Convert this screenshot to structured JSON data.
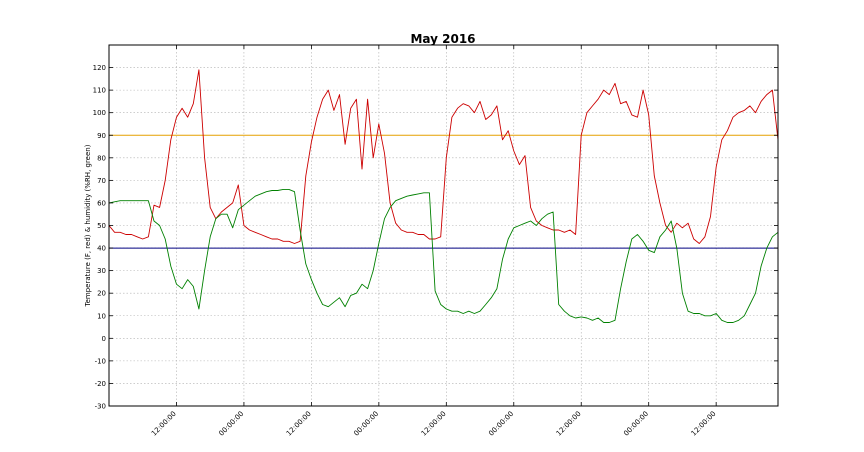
{
  "chart_data": {
    "type": "line",
    "title": "May 2016",
    "xlabel": "",
    "ylabel": "Temperature (F, red) & humidity (%RH, green)",
    "ylim": [
      -30,
      130
    ],
    "xlim": [
      0,
      119
    ],
    "yticks": [
      -30,
      -20,
      -10,
      0,
      10,
      20,
      30,
      40,
      50,
      60,
      70,
      80,
      90,
      100,
      110,
      120
    ],
    "xticks": [
      {
        "pos": 12,
        "label": "12:00:00"
      },
      {
        "pos": 24,
        "label": "00:00:00"
      },
      {
        "pos": 36,
        "label": "12:00:00"
      },
      {
        "pos": 48,
        "label": "00:00:00"
      },
      {
        "pos": 60,
        "label": "12:00:00"
      },
      {
        "pos": 72,
        "label": "00:00:00"
      },
      {
        "pos": 84,
        "label": "12:00:00"
      },
      {
        "pos": 96,
        "label": "00:00:00"
      },
      {
        "pos": 108,
        "label": "12:00:00"
      }
    ],
    "grid": true,
    "colors": {
      "temperature": "#cc0000",
      "humidity": "#008000",
      "upper_ref": "#e6a000",
      "lower_ref": "#000080"
    },
    "reference_lines": [
      {
        "y": 90,
        "color": "#e6a000"
      },
      {
        "y": 40,
        "color": "#000080"
      }
    ],
    "series": [
      {
        "color": "#cc0000",
        "x": [
          0,
          1,
          2,
          3,
          4,
          5,
          6,
          7,
          8,
          9,
          10,
          11,
          12,
          13,
          14,
          15,
          16,
          17,
          18,
          19,
          20,
          21,
          22,
          23,
          24,
          25,
          26,
          27,
          28,
          29,
          30,
          31,
          32,
          33,
          34,
          35,
          36,
          37,
          38,
          39,
          40,
          41,
          42,
          43,
          44,
          45,
          46,
          47,
          48,
          49,
          50,
          51,
          52,
          53,
          54,
          55,
          56,
          57,
          58,
          59,
          60,
          61,
          62,
          63,
          64,
          65,
          66,
          67,
          68,
          69,
          70,
          71,
          72,
          73,
          74,
          75,
          76,
          77,
          78,
          79,
          80,
          81,
          82,
          83,
          84,
          85,
          86,
          87,
          88,
          89,
          90,
          91,
          92,
          93,
          94,
          95,
          96,
          97,
          98,
          99,
          100,
          101,
          102,
          103,
          104,
          105,
          106,
          107,
          108,
          109,
          110,
          111,
          112,
          113,
          114,
          115,
          116,
          117,
          118,
          119
        ],
        "values": [
          50,
          47,
          47,
          46,
          46,
          45,
          44,
          45,
          59,
          58,
          70,
          88,
          98,
          102,
          98,
          104,
          119,
          80,
          58,
          53,
          56,
          58,
          60,
          68,
          50,
          48,
          47,
          46,
          45,
          44,
          44,
          43,
          43,
          42,
          43,
          72,
          87,
          98,
          106,
          110,
          101,
          108,
          86,
          102,
          106,
          75,
          106,
          80,
          95,
          82,
          60,
          51,
          48,
          47,
          47,
          46,
          46,
          44,
          44,
          45,
          80,
          98,
          102,
          104,
          103,
          100,
          105,
          97,
          99,
          103,
          88,
          92,
          83,
          77,
          81,
          58,
          52,
          50,
          49,
          48,
          48,
          47,
          48,
          46,
          90,
          100,
          103,
          106,
          110,
          108,
          113,
          104,
          105,
          99,
          98,
          110,
          99,
          72,
          60,
          50,
          47,
          51,
          49,
          51,
          44,
          42,
          45,
          54,
          76,
          88,
          92,
          98,
          100,
          101,
          103,
          100,
          105,
          108,
          110,
          88
        ]
      },
      {
        "color": "#008000",
        "x": [
          0,
          1,
          2,
          3,
          4,
          5,
          6,
          7,
          8,
          9,
          10,
          11,
          12,
          13,
          14,
          15,
          16,
          17,
          18,
          19,
          20,
          21,
          22,
          23,
          24,
          25,
          26,
          27,
          28,
          29,
          30,
          31,
          32,
          33,
          34,
          35,
          36,
          37,
          38,
          39,
          40,
          41,
          42,
          43,
          44,
          45,
          46,
          47,
          48,
          49,
          50,
          51,
          52,
          53,
          54,
          55,
          56,
          57,
          58,
          59,
          60,
          61,
          62,
          63,
          64,
          65,
          66,
          67,
          68,
          69,
          70,
          71,
          72,
          73,
          74,
          75,
          76,
          77,
          78,
          79,
          80,
          81,
          82,
          83,
          84,
          85,
          86,
          87,
          88,
          89,
          90,
          91,
          92,
          93,
          94,
          95,
          96,
          97,
          98,
          99,
          100,
          101,
          102,
          103,
          104,
          105,
          106,
          107,
          108,
          109,
          110,
          111,
          112,
          113,
          114,
          115,
          116,
          117,
          118,
          119
        ],
        "values": [
          60,
          60.5,
          61,
          61,
          61,
          61,
          61,
          61,
          52,
          50,
          44,
          32,
          24,
          22,
          26,
          23,
          13,
          30,
          45,
          53,
          55,
          55,
          49,
          57,
          59,
          61,
          63,
          64,
          65,
          65.5,
          65.5,
          66,
          66,
          65,
          48,
          33,
          26,
          20,
          15,
          14,
          16,
          18,
          14,
          19,
          20,
          24,
          22,
          30,
          42,
          53,
          58,
          61,
          62,
          63,
          63.5,
          64,
          64.5,
          64.5,
          21,
          15,
          13,
          12,
          12,
          11,
          12,
          11,
          12,
          15,
          18,
          22,
          35,
          44,
          49,
          50,
          51,
          52,
          50,
          53,
          55,
          56,
          15,
          12,
          10,
          9,
          9.5,
          9,
          8,
          9,
          7,
          7,
          8,
          22,
          34,
          44,
          46,
          43,
          39,
          38,
          45,
          48,
          52,
          40,
          20,
          12,
          11,
          11,
          10,
          10,
          11,
          8,
          7,
          7,
          8,
          10,
          15,
          20,
          32,
          40,
          45,
          47
        ]
      }
    ]
  }
}
